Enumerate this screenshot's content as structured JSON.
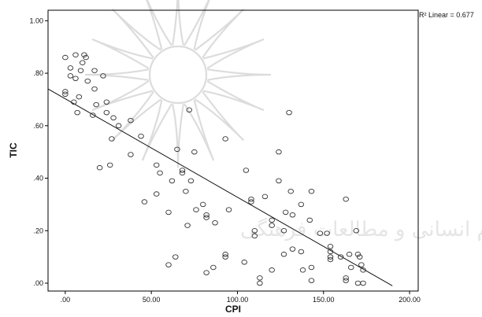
{
  "chart_data": {
    "type": "scatter",
    "xlabel": "CPI",
    "ylabel": "TIC",
    "xlim": [
      -10,
      205
    ],
    "ylim": [
      -0.03,
      1.04
    ],
    "x_ticks": [
      ".00",
      "50.00",
      "100.00",
      "150.00",
      "200.00"
    ],
    "x_tick_values": [
      0,
      50,
      100,
      150,
      200
    ],
    "y_ticks": [
      ".00",
      ".20",
      ".40",
      ".60",
      ".80",
      "1.00"
    ],
    "y_tick_values": [
      0,
      0.2,
      0.4,
      0.6,
      0.8,
      1.0
    ],
    "fit_line": {
      "label": "R² Linear = 0.677",
      "x": [
        -10,
        190
      ],
      "y": [
        0.74,
        -0.01
      ]
    },
    "points": [
      {
        "x": 0,
        "y": 0.86
      },
      {
        "x": 3,
        "y": 0.82
      },
      {
        "x": 6,
        "y": 0.87
      },
      {
        "x": 10,
        "y": 0.84
      },
      {
        "x": 11,
        "y": 0.87
      },
      {
        "x": 12,
        "y": 0.86
      },
      {
        "x": 0,
        "y": 0.73
      },
      {
        "x": 0,
        "y": 0.72
      },
      {
        "x": 3,
        "y": 0.79
      },
      {
        "x": 6,
        "y": 0.78
      },
      {
        "x": 9,
        "y": 0.81
      },
      {
        "x": 13,
        "y": 0.77
      },
      {
        "x": 17,
        "y": 0.81
      },
      {
        "x": 17,
        "y": 0.74
      },
      {
        "x": 22,
        "y": 0.79
      },
      {
        "x": 5,
        "y": 0.69
      },
      {
        "x": 8,
        "y": 0.71
      },
      {
        "x": 7,
        "y": 0.65
      },
      {
        "x": 16,
        "y": 0.64
      },
      {
        "x": 18,
        "y": 0.68
      },
      {
        "x": 24,
        "y": 0.69
      },
      {
        "x": 24,
        "y": 0.65
      },
      {
        "x": 28,
        "y": 0.63
      },
      {
        "x": 31,
        "y": 0.6
      },
      {
        "x": 38,
        "y": 0.62
      },
      {
        "x": 44,
        "y": 0.56
      },
      {
        "x": 27,
        "y": 0.55
      },
      {
        "x": 26,
        "y": 0.45
      },
      {
        "x": 20,
        "y": 0.44
      },
      {
        "x": 38,
        "y": 0.49
      },
      {
        "x": 72,
        "y": 0.66
      },
      {
        "x": 130,
        "y": 0.65
      },
      {
        "x": 53,
        "y": 0.45
      },
      {
        "x": 55,
        "y": 0.42
      },
      {
        "x": 65,
        "y": 0.51
      },
      {
        "x": 75,
        "y": 0.5
      },
      {
        "x": 93,
        "y": 0.55
      },
      {
        "x": 68,
        "y": 0.43
      },
      {
        "x": 68,
        "y": 0.42
      },
      {
        "x": 62,
        "y": 0.39
      },
      {
        "x": 73,
        "y": 0.39
      },
      {
        "x": 46,
        "y": 0.31
      },
      {
        "x": 53,
        "y": 0.34
      },
      {
        "x": 70,
        "y": 0.35
      },
      {
        "x": 60,
        "y": 0.27
      },
      {
        "x": 76,
        "y": 0.28
      },
      {
        "x": 80,
        "y": 0.3
      },
      {
        "x": 82,
        "y": 0.26
      },
      {
        "x": 82,
        "y": 0.25
      },
      {
        "x": 87,
        "y": 0.23
      },
      {
        "x": 71,
        "y": 0.22
      },
      {
        "x": 60,
        "y": 0.07
      },
      {
        "x": 64,
        "y": 0.1
      },
      {
        "x": 82,
        "y": 0.04
      },
      {
        "x": 86,
        "y": 0.06
      },
      {
        "x": 93,
        "y": 0.11
      },
      {
        "x": 93,
        "y": 0.1
      },
      {
        "x": 105,
        "y": 0.43
      },
      {
        "x": 108,
        "y": 0.32
      },
      {
        "x": 108,
        "y": 0.31
      },
      {
        "x": 95,
        "y": 0.28
      },
      {
        "x": 116,
        "y": 0.33
      },
      {
        "x": 110,
        "y": 0.2
      },
      {
        "x": 110,
        "y": 0.18
      },
      {
        "x": 104,
        "y": 0.08
      },
      {
        "x": 113,
        "y": 0.02
      },
      {
        "x": 113,
        "y": 0.0
      },
      {
        "x": 120,
        "y": 0.24
      },
      {
        "x": 120,
        "y": 0.22
      },
      {
        "x": 120,
        "y": 0.05
      },
      {
        "x": 124,
        "y": 0.5
      },
      {
        "x": 124,
        "y": 0.39
      },
      {
        "x": 127,
        "y": 0.2
      },
      {
        "x": 128,
        "y": 0.27
      },
      {
        "x": 132,
        "y": 0.26
      },
      {
        "x": 131,
        "y": 0.35
      },
      {
        "x": 127,
        "y": 0.11
      },
      {
        "x": 132,
        "y": 0.13
      },
      {
        "x": 137,
        "y": 0.3
      },
      {
        "x": 137,
        "y": 0.12
      },
      {
        "x": 142,
        "y": 0.24
      },
      {
        "x": 143,
        "y": 0.35
      },
      {
        "x": 138,
        "y": 0.05
      },
      {
        "x": 143,
        "y": 0.06
      },
      {
        "x": 143,
        "y": 0.01
      },
      {
        "x": 148,
        "y": 0.19
      },
      {
        "x": 152,
        "y": 0.19
      },
      {
        "x": 154,
        "y": 0.14
      },
      {
        "x": 154,
        "y": 0.12
      },
      {
        "x": 154,
        "y": 0.1
      },
      {
        "x": 154,
        "y": 0.09
      },
      {
        "x": 160,
        "y": 0.1
      },
      {
        "x": 163,
        "y": 0.32
      },
      {
        "x": 165,
        "y": 0.11
      },
      {
        "x": 166,
        "y": 0.06
      },
      {
        "x": 163,
        "y": 0.02
      },
      {
        "x": 163,
        "y": 0.01
      },
      {
        "x": 169,
        "y": 0.2
      },
      {
        "x": 170,
        "y": 0.11
      },
      {
        "x": 171,
        "y": 0.1
      },
      {
        "x": 172,
        "y": 0.07
      },
      {
        "x": 173,
        "y": 0.05
      },
      {
        "x": 170,
        "y": 0.0
      },
      {
        "x": 173,
        "y": 0.0
      }
    ]
  }
}
